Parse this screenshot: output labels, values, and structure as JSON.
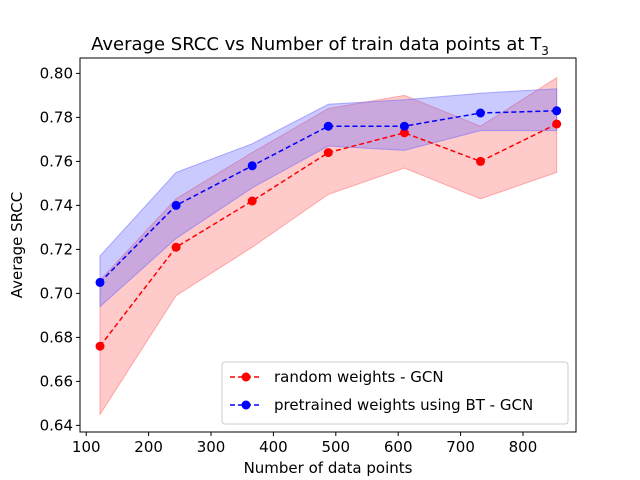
{
  "chart_data": {
    "type": "line",
    "title": "Average SRCC vs Number of train data points at T",
    "title_subscript": "3",
    "xlabel": "Number of data points",
    "ylabel": "Average SRCC",
    "xlim": [
      90,
      885
    ],
    "ylim": [
      0.637,
      0.807
    ],
    "xticks": [
      100,
      200,
      300,
      400,
      500,
      600,
      700,
      800
    ],
    "yticks": [
      0.64,
      0.66,
      0.68,
      0.7,
      0.72,
      0.74,
      0.76,
      0.78,
      0.8
    ],
    "ytick_labels": [
      "0.64",
      "0.66",
      "0.68",
      "0.70",
      "0.72",
      "0.74",
      "0.76",
      "0.78",
      "0.80"
    ],
    "grid": false,
    "legend_position": "lower-right",
    "x": [
      122,
      244,
      366,
      488,
      610,
      732,
      854
    ],
    "series": [
      {
        "name": "random weights - GCN",
        "color": "#ff0000",
        "band_color": "#ff6666",
        "values": [
          0.676,
          0.721,
          0.742,
          0.764,
          0.773,
          0.76,
          0.777
        ],
        "upper": [
          0.706,
          0.743,
          0.764,
          0.784,
          0.79,
          0.776,
          0.798
        ],
        "lower": [
          0.645,
          0.699,
          0.721,
          0.745,
          0.757,
          0.743,
          0.755
        ]
      },
      {
        "name": "pretrained weights using BT - GCN",
        "color": "#0000ff",
        "band_color": "#6666ff",
        "values": [
          0.705,
          0.74,
          0.758,
          0.776,
          0.776,
          0.782,
          0.783
        ],
        "upper": [
          0.717,
          0.755,
          0.768,
          0.786,
          0.788,
          0.791,
          0.793
        ],
        "lower": [
          0.694,
          0.725,
          0.748,
          0.767,
          0.765,
          0.774,
          0.774
        ]
      }
    ]
  }
}
